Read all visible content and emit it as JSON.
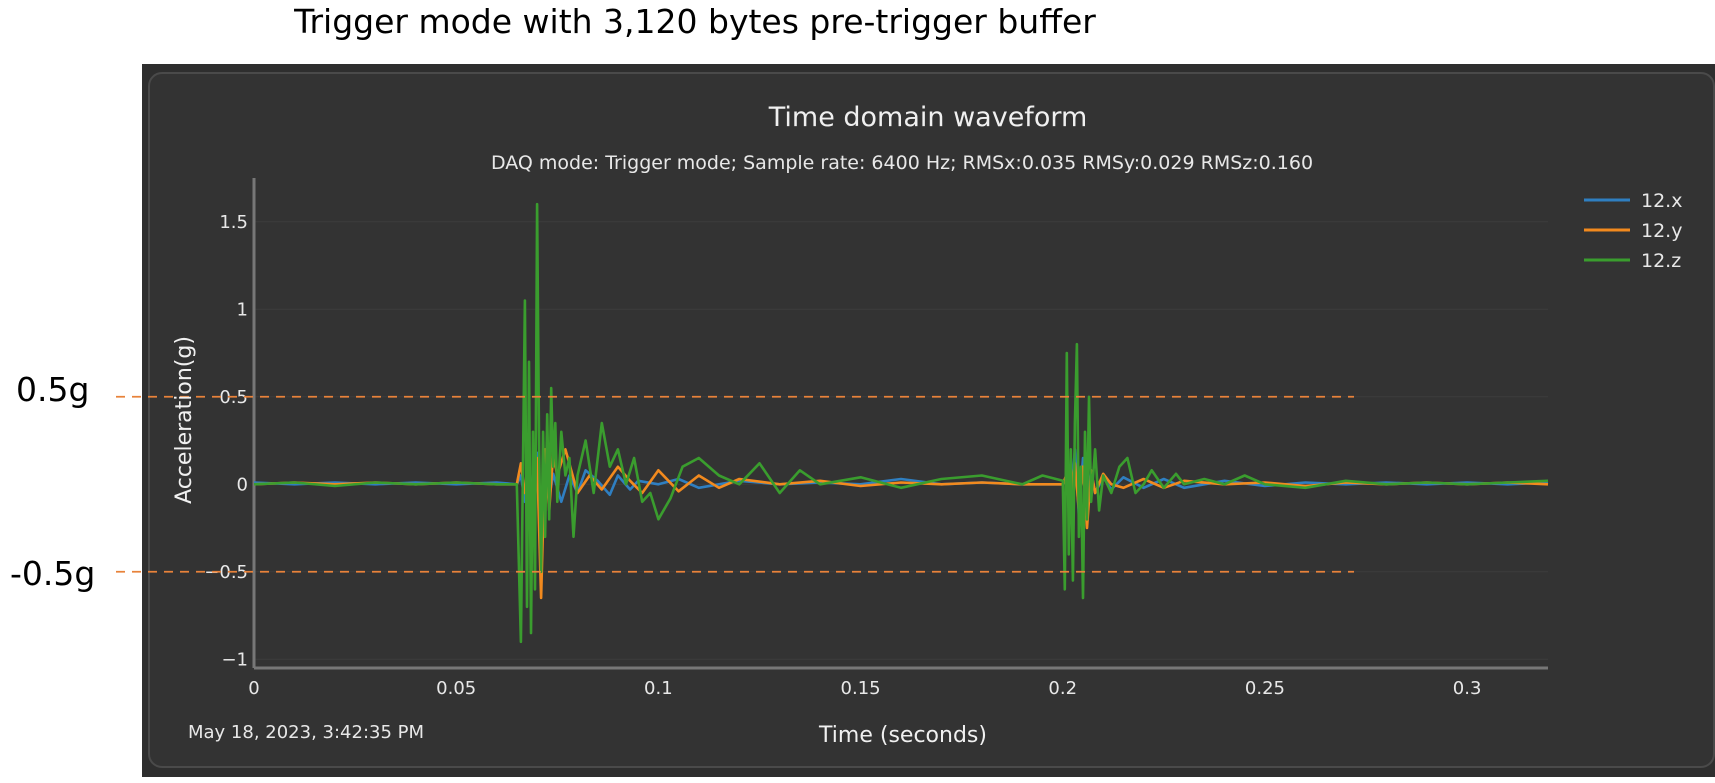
{
  "annotation": {
    "title": "Trigger mode with 3,120 bytes pre-trigger buffer",
    "threshold_pos_label": "0.5g",
    "threshold_neg_label": "-0.5g",
    "threshold_color": "#e8823a"
  },
  "panel": {
    "timestamp": "May 18, 2023, 3:42:35 PM",
    "background": "#333333"
  },
  "chart_data": {
    "type": "line",
    "title": "Time domain waveform",
    "subtitle": "DAQ mode: Trigger mode; Sample rate: 6400 Hz; RMSx:0.035 RMSy:0.029 RMSz:0.160",
    "xlabel": "Time (seconds)",
    "ylabel": "Acceleration(g)",
    "xlim": [
      0,
      0.32
    ],
    "ylim": [
      -1.05,
      1.75
    ],
    "xticks": [
      0,
      0.05,
      0.1,
      0.15,
      0.2,
      0.25,
      0.3
    ],
    "xtick_labels": [
      "0",
      "0.05",
      "0.1",
      "0.15",
      "0.2",
      "0.25",
      "0.3"
    ],
    "yticks": [
      -1,
      -0.5,
      0,
      0.5,
      1,
      1.5
    ],
    "ytick_labels": [
      "−1",
      "−0.5",
      "0",
      "0.5",
      "1",
      "1.5"
    ],
    "threshold_lines": [
      0.5,
      -0.5
    ],
    "legend_position": "top-right",
    "series": [
      {
        "name": "12.x",
        "color": "#2f7fc1",
        "x": [
          0,
          0.01,
          0.02,
          0.03,
          0.04,
          0.05,
          0.06,
          0.065,
          0.066,
          0.067,
          0.068,
          0.069,
          0.07,
          0.071,
          0.072,
          0.073,
          0.074,
          0.076,
          0.078,
          0.08,
          0.082,
          0.085,
          0.088,
          0.09,
          0.093,
          0.095,
          0.1,
          0.105,
          0.11,
          0.12,
          0.13,
          0.14,
          0.15,
          0.16,
          0.17,
          0.18,
          0.19,
          0.2,
          0.201,
          0.202,
          0.203,
          0.204,
          0.205,
          0.206,
          0.207,
          0.208,
          0.21,
          0.212,
          0.215,
          0.22,
          0.225,
          0.23,
          0.24,
          0.25,
          0.26,
          0.27,
          0.28,
          0.29,
          0.3,
          0.31,
          0.32
        ],
        "y": [
          0.01,
          0.0,
          0.01,
          0.0,
          0.01,
          0.0,
          0.01,
          0.0,
          0.05,
          -0.1,
          0.1,
          -0.15,
          0.18,
          -0.2,
          0.12,
          -0.08,
          0.06,
          -0.1,
          0.05,
          -0.05,
          0.08,
          0.02,
          -0.06,
          0.05,
          -0.03,
          0.02,
          0.0,
          0.03,
          -0.02,
          0.02,
          0.0,
          0.01,
          0.0,
          0.03,
          0.0,
          0.01,
          0.0,
          0.0,
          0.05,
          -0.12,
          0.2,
          -0.18,
          0.15,
          -0.1,
          0.08,
          -0.05,
          0.04,
          -0.03,
          0.04,
          -0.02,
          0.03,
          -0.02,
          0.02,
          -0.01,
          0.01,
          0.0,
          0.01,
          0.0,
          0.01,
          0.0,
          0.01
        ]
      },
      {
        "name": "12.y",
        "color": "#f28a1e",
        "x": [
          0,
          0.01,
          0.02,
          0.03,
          0.04,
          0.05,
          0.06,
          0.065,
          0.066,
          0.067,
          0.068,
          0.069,
          0.07,
          0.071,
          0.072,
          0.073,
          0.074,
          0.075,
          0.077,
          0.08,
          0.083,
          0.086,
          0.09,
          0.093,
          0.096,
          0.1,
          0.105,
          0.11,
          0.115,
          0.12,
          0.13,
          0.14,
          0.15,
          0.16,
          0.17,
          0.18,
          0.19,
          0.2,
          0.201,
          0.202,
          0.203,
          0.204,
          0.205,
          0.206,
          0.207,
          0.208,
          0.21,
          0.212,
          0.215,
          0.22,
          0.225,
          0.23,
          0.24,
          0.25,
          0.26,
          0.27,
          0.28,
          0.29,
          0.3,
          0.31,
          0.32
        ],
        "y": [
          0.0,
          0.01,
          0.0,
          0.01,
          0.0,
          0.01,
          0.0,
          0.0,
          0.12,
          -0.05,
          0.1,
          -0.3,
          0.15,
          -0.65,
          0.2,
          -0.15,
          0.18,
          0.05,
          0.2,
          -0.05,
          0.05,
          -0.03,
          0.1,
          0.02,
          -0.05,
          0.08,
          -0.04,
          0.05,
          -0.02,
          0.03,
          0.0,
          0.02,
          -0.01,
          0.01,
          0.0,
          0.01,
          0.0,
          0.0,
          0.06,
          -0.08,
          0.12,
          -0.15,
          0.1,
          -0.25,
          0.08,
          -0.05,
          0.06,
          0.0,
          -0.02,
          0.03,
          -0.02,
          0.02,
          0.0,
          0.01,
          -0.01,
          0.01,
          0.0,
          0.01,
          0.0,
          0.01,
          0.0
        ]
      },
      {
        "name": "12.z",
        "color": "#3a9d2e",
        "x": [
          0,
          0.01,
          0.02,
          0.03,
          0.04,
          0.05,
          0.06,
          0.065,
          0.066,
          0.067,
          0.0675,
          0.068,
          0.0685,
          0.069,
          0.0695,
          0.07,
          0.0705,
          0.071,
          0.0715,
          0.072,
          0.0725,
          0.073,
          0.0735,
          0.074,
          0.0745,
          0.075,
          0.076,
          0.077,
          0.078,
          0.079,
          0.08,
          0.082,
          0.084,
          0.086,
          0.088,
          0.09,
          0.092,
          0.094,
          0.096,
          0.098,
          0.1,
          0.103,
          0.106,
          0.11,
          0.115,
          0.12,
          0.125,
          0.13,
          0.135,
          0.14,
          0.15,
          0.16,
          0.17,
          0.18,
          0.19,
          0.195,
          0.2,
          0.2005,
          0.201,
          0.2015,
          0.202,
          0.2025,
          0.203,
          0.2035,
          0.204,
          0.2045,
          0.205,
          0.2055,
          0.206,
          0.2065,
          0.207,
          0.208,
          0.209,
          0.21,
          0.212,
          0.214,
          0.216,
          0.218,
          0.22,
          0.222,
          0.225,
          0.228,
          0.23,
          0.235,
          0.24,
          0.245,
          0.25,
          0.26,
          0.27,
          0.28,
          0.29,
          0.3,
          0.31,
          0.32
        ],
        "y": [
          0.0,
          0.01,
          -0.01,
          0.01,
          0.0,
          0.01,
          0.0,
          0.0,
          -0.9,
          1.05,
          -0.7,
          0.7,
          -0.85,
          0.3,
          -0.6,
          1.6,
          0.2,
          -0.5,
          0.3,
          -0.3,
          0.4,
          -0.2,
          0.55,
          0.1,
          0.35,
          -0.1,
          0.3,
          0.05,
          0.15,
          -0.3,
          0.05,
          0.25,
          -0.05,
          0.35,
          0.1,
          0.2,
          0.0,
          0.15,
          -0.1,
          -0.05,
          -0.2,
          -0.08,
          0.1,
          0.15,
          0.05,
          0.0,
          0.12,
          -0.05,
          0.08,
          0.0,
          0.04,
          -0.02,
          0.03,
          0.05,
          0.0,
          0.05,
          0.02,
          -0.6,
          0.75,
          -0.4,
          0.2,
          -0.55,
          0.35,
          0.8,
          -0.3,
          0.1,
          -0.65,
          0.3,
          -0.2,
          0.5,
          -0.1,
          0.2,
          -0.15,
          0.05,
          -0.05,
          0.1,
          0.15,
          -0.05,
          0.0,
          0.08,
          -0.02,
          0.06,
          0.0,
          0.03,
          0.0,
          0.05,
          0.0,
          -0.02,
          0.02,
          0.0,
          0.01,
          0.0,
          0.01,
          0.02
        ]
      }
    ]
  }
}
